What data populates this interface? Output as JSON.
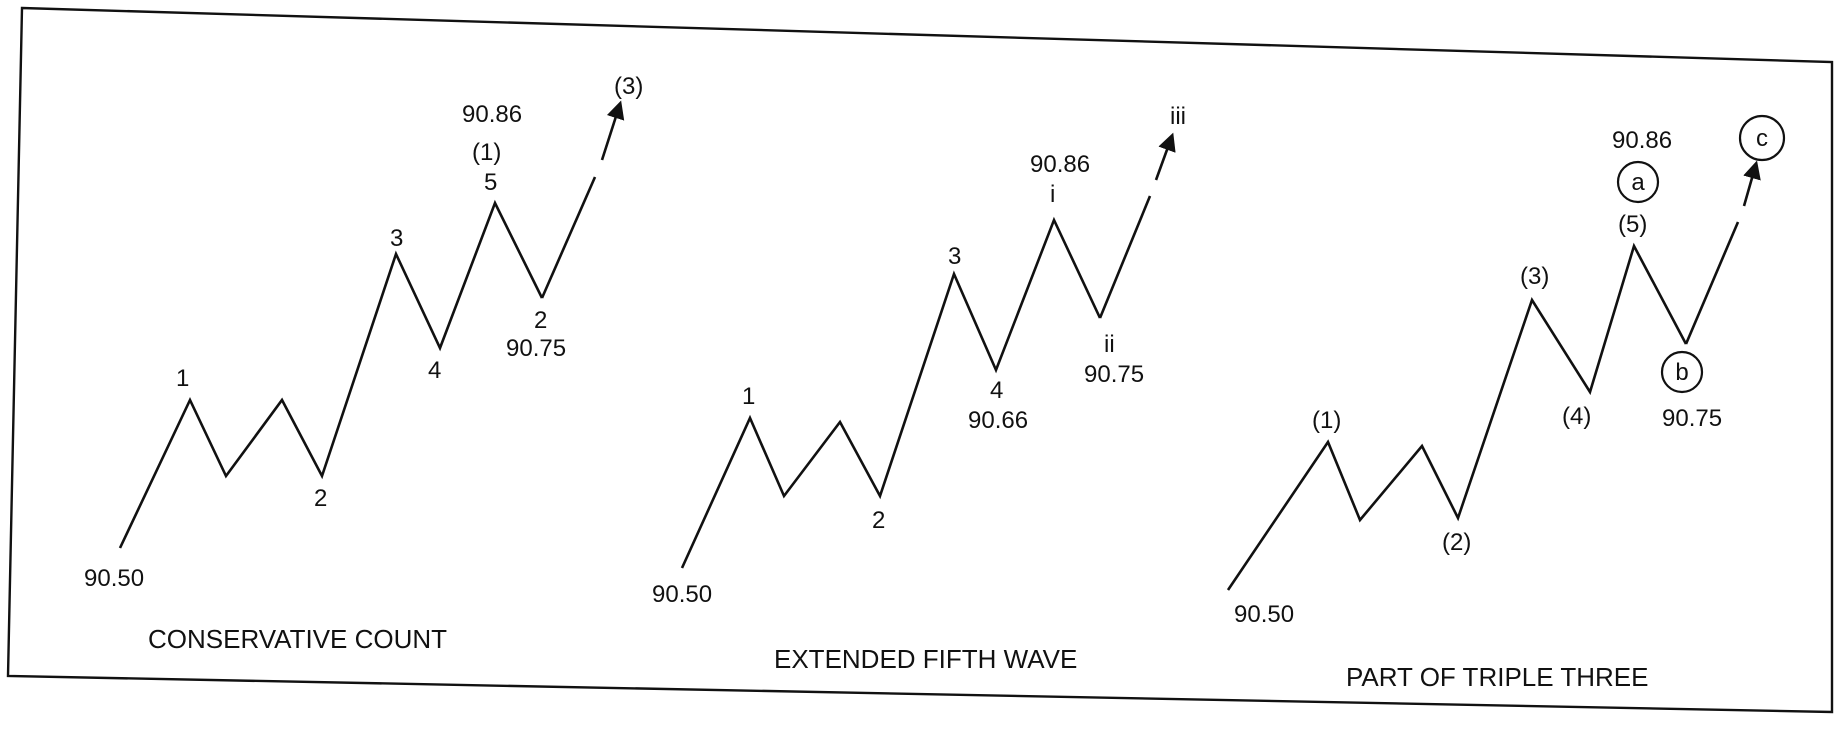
{
  "panels": [
    {
      "caption": "CONSERVATIVE COUNT",
      "labels": {
        "start_price": "90.50",
        "w1": "1",
        "w2": "2",
        "w3": "3",
        "w4": "4",
        "w5": "5",
        "top_degree": "(1)",
        "top_price": "90.86",
        "after_top": "2",
        "after_top_price": "90.75",
        "target": "(3)"
      }
    },
    {
      "caption": "EXTENDED FIFTH WAVE",
      "labels": {
        "start_price": "90.50",
        "w1": "1",
        "w2": "2",
        "w3": "3",
        "w4": "4",
        "w4_price": "90.66",
        "top": "i",
        "top_price": "90.86",
        "after_top": "ii",
        "after_top_price": "90.75",
        "target": "iii"
      }
    },
    {
      "caption": "PART OF TRIPLE THREE",
      "labels": {
        "start_price": "90.50",
        "w1": "(1)",
        "w2": "(2)",
        "w3": "(3)",
        "w4": "(4)",
        "w5": "(5)",
        "top_circled": "a",
        "top_price": "90.86",
        "after_top_circled": "b",
        "after_top_price": "90.75",
        "target_circled": "c"
      }
    }
  ],
  "colors": {
    "ink": "#111111",
    "paper": "#ffffff"
  }
}
